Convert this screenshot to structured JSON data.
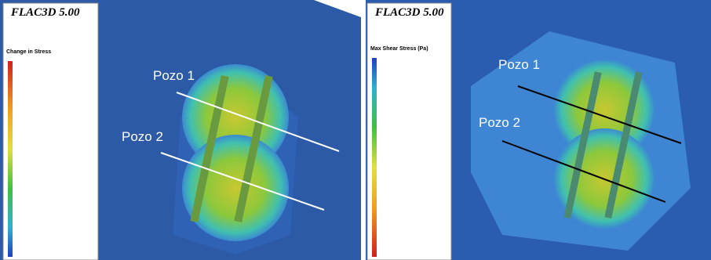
{
  "panels": [
    {
      "software": "FLAC3D 5.00",
      "legend_title": "Change in Stress",
      "wells": [
        "Pozo 1",
        "Pozo 2"
      ]
    },
    {
      "software": "FLAC3D 5.00",
      "legend_title": "Max Shear Stress (Pa)",
      "wells": [
        "Pozo 1",
        "Pozo 2"
      ]
    }
  ]
}
